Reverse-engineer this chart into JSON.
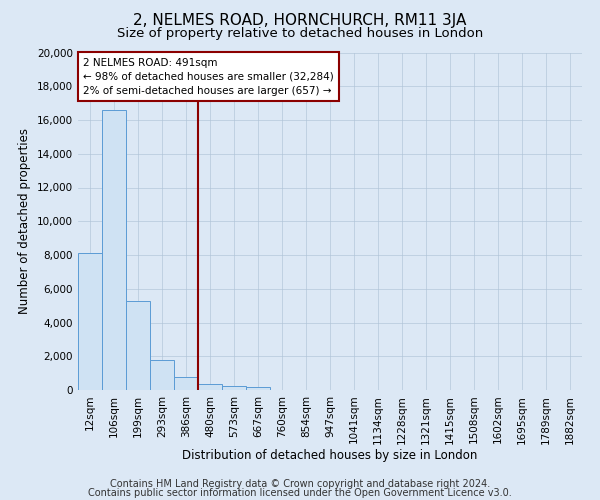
{
  "title": "2, NELMES ROAD, HORNCHURCH, RM11 3JA",
  "subtitle": "Size of property relative to detached houses in London",
  "xlabel": "Distribution of detached houses by size in London",
  "ylabel": "Number of detached properties",
  "bar_labels": [
    "12sqm",
    "106sqm",
    "199sqm",
    "293sqm",
    "386sqm",
    "480sqm",
    "573sqm",
    "667sqm",
    "760sqm",
    "854sqm",
    "947sqm",
    "1041sqm",
    "1134sqm",
    "1228sqm",
    "1321sqm",
    "1415sqm",
    "1508sqm",
    "1602sqm",
    "1695sqm",
    "1789sqm",
    "1882sqm"
  ],
  "bar_heights": [
    8100,
    16600,
    5300,
    1750,
    800,
    350,
    230,
    170,
    0,
    0,
    0,
    0,
    0,
    0,
    0,
    0,
    0,
    0,
    0,
    0,
    0
  ],
  "ylim": [
    0,
    20000
  ],
  "yticks": [
    0,
    2000,
    4000,
    6000,
    8000,
    10000,
    12000,
    14000,
    16000,
    18000,
    20000
  ],
  "bar_color": "#cfe2f3",
  "bar_edge_color": "#5b9bd5",
  "vline_x_idx": 4.5,
  "vline_color": "#8b0000",
  "annotation_line1": "2 NELMES ROAD: 491sqm",
  "annotation_line2": "← 98% of detached houses are smaller (32,284)",
  "annotation_line3": "2% of semi-detached houses are larger (657) →",
  "annotation_box_color": "#ffffff",
  "annotation_box_edge": "#8b0000",
  "footer1": "Contains HM Land Registry data © Crown copyright and database right 2024.",
  "footer2": "Contains public sector information licensed under the Open Government Licence v3.0.",
  "background_color": "#dce8f5",
  "plot_bg_color": "#dce8f5",
  "title_fontsize": 11,
  "subtitle_fontsize": 9.5,
  "axis_label_fontsize": 8.5,
  "tick_fontsize": 7.5,
  "footer_fontsize": 7
}
